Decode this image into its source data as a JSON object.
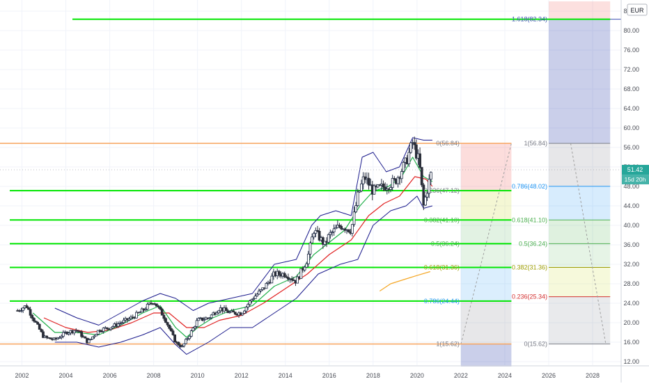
{
  "chart_data": {
    "type": "candlestick",
    "currency": "EUR",
    "last_price": "51.42",
    "countdown": "15d 20h",
    "price_axis": {
      "min": 11,
      "max": 86,
      "ticks": [
        "12.00",
        "16.00",
        "20.00",
        "24.00",
        "28.00",
        "32.00",
        "36.00",
        "40.00",
        "44.00",
        "48.00",
        "52.00",
        "56.00",
        "60.00",
        "64.00",
        "68.00",
        "72.00",
        "76.00",
        "80.00",
        "84.00"
      ]
    },
    "time_axis": {
      "min": 2001.0,
      "max": 2029.3,
      "ticks": [
        "2002",
        "2004",
        "2006",
        "2008",
        "2010",
        "2012",
        "2014",
        "2016",
        "2018",
        "2020",
        "2022",
        "2024",
        "2026",
        "2028"
      ]
    },
    "fib_retracement": [
      {
        "label": "1.618(82.34)",
        "value": 82.34
      },
      {
        "label": "0(56.84)",
        "value": 56.84
      },
      {
        "label": "0.236(47.12)",
        "value": 47.12
      },
      {
        "label": "0.382(41.10)",
        "value": 41.1
      },
      {
        "label": "0.5(36.24)",
        "value": 36.24
      },
      {
        "label": "0.618(31.36)",
        "value": 31.36
      },
      {
        "label": "0.786(24.44)",
        "value": 24.44
      },
      {
        "label": "1(15.62)",
        "value": 15.62
      }
    ],
    "fib_projection": [
      {
        "label": "1(56.84)",
        "value": 56.84,
        "color": "#787b86"
      },
      {
        "label": "0.786(48.02)",
        "value": 48.02,
        "color": "#2196f3"
      },
      {
        "label": "0.618(41.10)",
        "value": 41.1,
        "color": "#4caf50"
      },
      {
        "label": "0.5(36.24)",
        "value": 36.24,
        "color": "#4caf50"
      },
      {
        "label": "0.382(31.36)",
        "value": 31.36,
        "color": "#9c9c00"
      },
      {
        "label": "0.236(25.34)",
        "value": 25.34,
        "color": "#d32f2f"
      },
      {
        "label": "0(15.62)",
        "value": 15.62,
        "color": "#787b86"
      }
    ],
    "colors": {
      "up": "#26a69a",
      "down": "#ef5350",
      "candle": "#1f2a44",
      "support": "#00e600",
      "fib_edge": "#f7a35c",
      "ma_fast": "#22b04b",
      "ma_slow": "#e02020",
      "bb": "#1a1a8c",
      "ma_long": "#f5a623"
    },
    "price_series": [
      [
        2001.8,
        22.5
      ],
      [
        2002.2,
        23.5
      ],
      [
        2002.5,
        21
      ],
      [
        2003.0,
        17
      ],
      [
        2003.5,
        16.5
      ],
      [
        2004.0,
        18
      ],
      [
        2004.5,
        18.5
      ],
      [
        2005.0,
        16
      ],
      [
        2005.5,
        18.5
      ],
      [
        2006.0,
        19
      ],
      [
        2006.5,
        20
      ],
      [
        2007.0,
        21
      ],
      [
        2007.5,
        22.5
      ],
      [
        2008.0,
        24.5
      ],
      [
        2008.5,
        21
      ],
      [
        2009.0,
        16
      ],
      [
        2009.3,
        15
      ],
      [
        2009.7,
        18
      ],
      [
        2010.0,
        20.5
      ],
      [
        2010.5,
        21
      ],
      [
        2011.0,
        23
      ],
      [
        2011.5,
        22
      ],
      [
        2012.0,
        22
      ],
      [
        2012.5,
        25
      ],
      [
        2013.0,
        27
      ],
      [
        2013.5,
        30
      ],
      [
        2014.0,
        30
      ],
      [
        2014.5,
        28.5
      ],
      [
        2015.0,
        33
      ],
      [
        2015.3,
        39
      ],
      [
        2015.8,
        36
      ],
      [
        2016.0,
        38
      ],
      [
        2016.5,
        40
      ],
      [
        2017.0,
        39
      ],
      [
        2017.3,
        46
      ],
      [
        2017.6,
        50
      ],
      [
        2018.0,
        47
      ],
      [
        2018.5,
        48
      ],
      [
        2019.0,
        49
      ],
      [
        2019.5,
        53
      ],
      [
        2019.8,
        57
      ],
      [
        2020.1,
        53
      ],
      [
        2020.3,
        44
      ],
      [
        2020.6,
        50
      ],
      [
        2020.7,
        51.4
      ]
    ],
    "ma_fast": [
      [
        2002.5,
        22
      ],
      [
        2003.5,
        18
      ],
      [
        2004.5,
        18
      ],
      [
        2005.5,
        17.5
      ],
      [
        2006.5,
        19.5
      ],
      [
        2007.5,
        22
      ],
      [
        2008.3,
        23.5
      ],
      [
        2009.0,
        19
      ],
      [
        2009.5,
        17
      ],
      [
        2010.0,
        19
      ],
      [
        2010.7,
        21
      ],
      [
        2011.5,
        22.5
      ],
      [
        2012.5,
        23.5
      ],
      [
        2013.5,
        27.5
      ],
      [
        2014.5,
        29.5
      ],
      [
        2015.3,
        34
      ],
      [
        2016.0,
        36.5
      ],
      [
        2016.7,
        39
      ],
      [
        2017.4,
        44
      ],
      [
        2018.0,
        47
      ],
      [
        2018.7,
        48
      ],
      [
        2019.3,
        50
      ],
      [
        2019.8,
        54
      ],
      [
        2020.3,
        50
      ],
      [
        2020.7,
        49
      ]
    ],
    "ma_slow": [
      [
        2003.0,
        21
      ],
      [
        2004.0,
        19
      ],
      [
        2005.0,
        18
      ],
      [
        2006.0,
        18.5
      ],
      [
        2007.0,
        20
      ],
      [
        2008.0,
        22
      ],
      [
        2008.7,
        22
      ],
      [
        2009.5,
        19
      ],
      [
        2010.3,
        19
      ],
      [
        2011.0,
        20.5
      ],
      [
        2012.0,
        21.5
      ],
      [
        2013.0,
        24
      ],
      [
        2014.0,
        27
      ],
      [
        2015.0,
        30
      ],
      [
        2016.0,
        34
      ],
      [
        2017.0,
        37
      ],
      [
        2017.8,
        42
      ],
      [
        2018.5,
        44.5
      ],
      [
        2019.2,
        46
      ],
      [
        2019.9,
        50
      ],
      [
        2020.4,
        49.5
      ],
      [
        2020.7,
        48
      ]
    ],
    "bb_upper": [
      [
        2003.5,
        23
      ],
      [
        2004.5,
        21
      ],
      [
        2005.5,
        19.5
      ],
      [
        2006.5,
        22
      ],
      [
        2007.5,
        24.5
      ],
      [
        2008.3,
        26
      ],
      [
        2009.0,
        25
      ],
      [
        2009.8,
        22.5
      ],
      [
        2010.5,
        24
      ],
      [
        2011.5,
        25
      ],
      [
        2012.5,
        26
      ],
      [
        2013.5,
        32
      ],
      [
        2014.5,
        33
      ],
      [
        2015.2,
        40
      ],
      [
        2015.6,
        42
      ],
      [
        2016.3,
        43
      ],
      [
        2017.0,
        42
      ],
      [
        2017.5,
        54
      ],
      [
        2018.0,
        55
      ],
      [
        2018.6,
        51
      ],
      [
        2019.2,
        52
      ],
      [
        2019.8,
        58
      ],
      [
        2020.3,
        57.5
      ],
      [
        2020.7,
        57.5
      ]
    ],
    "bb_lower": [
      [
        2003.5,
        16
      ],
      [
        2004.5,
        16
      ],
      [
        2005.5,
        15
      ],
      [
        2006.5,
        16
      ],
      [
        2007.5,
        17.5
      ],
      [
        2008.3,
        19
      ],
      [
        2009.0,
        15.5
      ],
      [
        2009.5,
        13.5
      ],
      [
        2010.5,
        16
      ],
      [
        2011.5,
        19
      ],
      [
        2012.5,
        19
      ],
      [
        2013.5,
        22
      ],
      [
        2014.5,
        25
      ],
      [
        2015.5,
        30
      ],
      [
        2016.5,
        32
      ],
      [
        2017.3,
        33
      ],
      [
        2018.0,
        40
      ],
      [
        2018.8,
        43
      ],
      [
        2019.5,
        44
      ],
      [
        2020.0,
        46
      ],
      [
        2020.3,
        43.5
      ],
      [
        2020.7,
        44
      ]
    ],
    "ma_long": [
      [
        2018.3,
        26.5
      ],
      [
        2018.8,
        28
      ],
      [
        2019.5,
        29
      ],
      [
        2020.0,
        29.7
      ],
      [
        2020.6,
        30.5
      ]
    ]
  }
}
